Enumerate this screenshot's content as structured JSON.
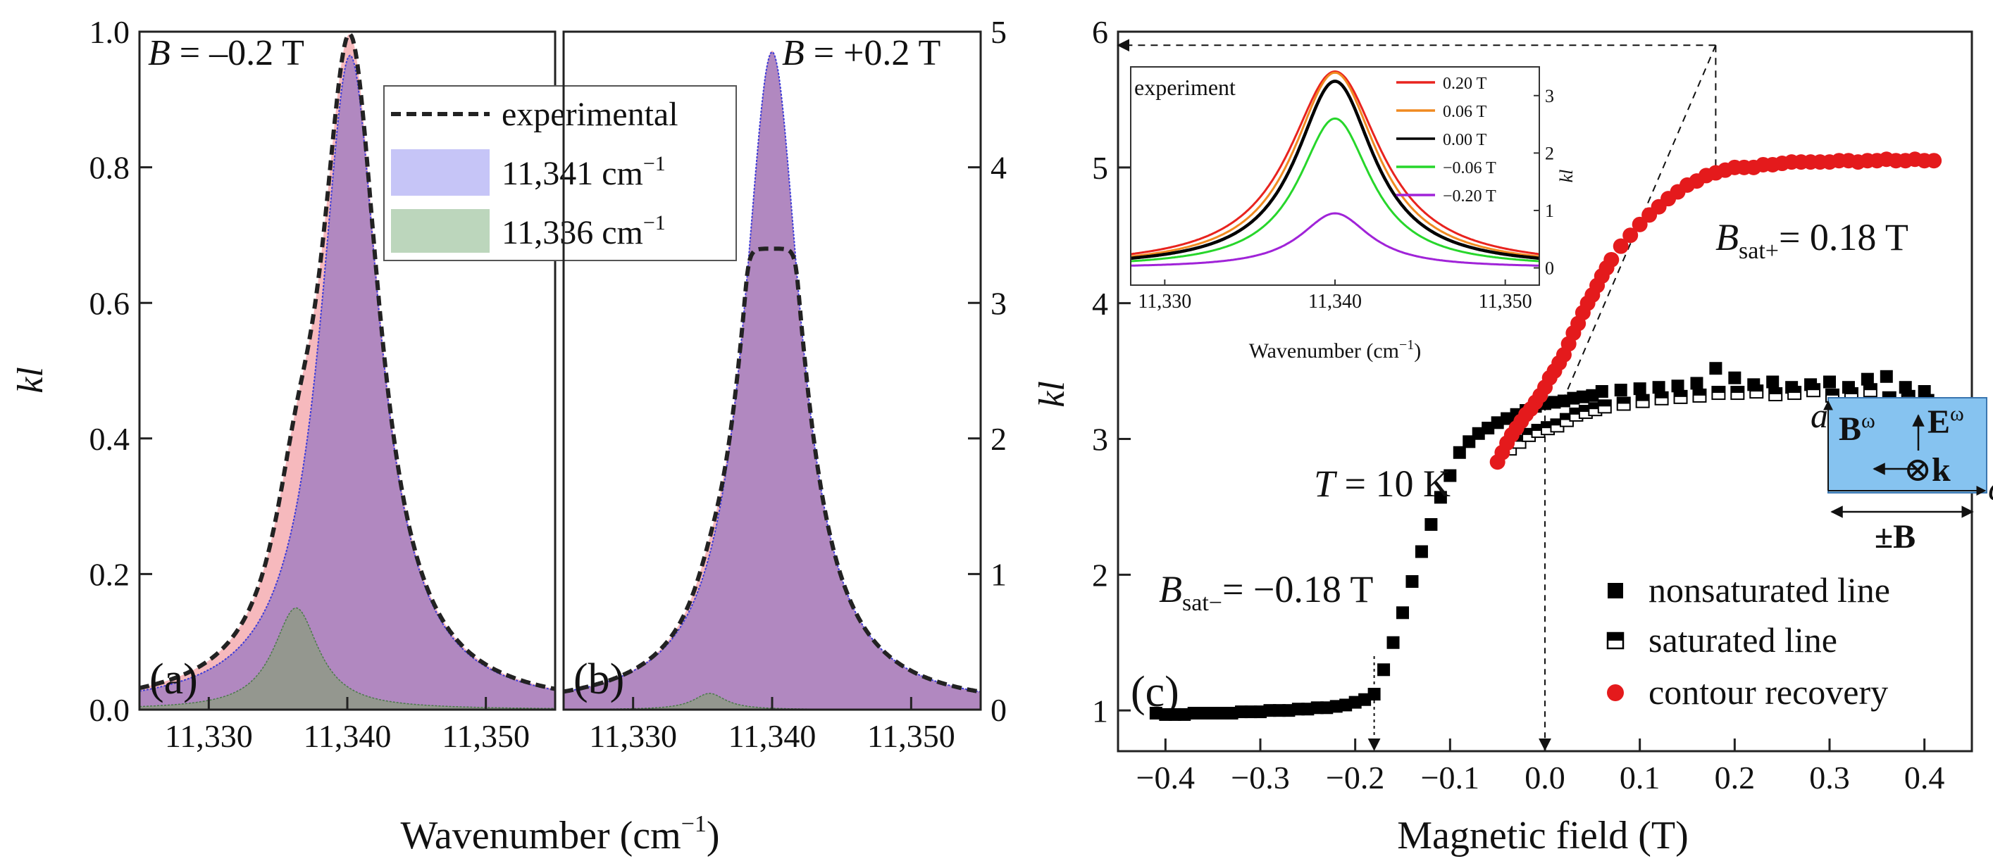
{
  "chart_data": [
    {
      "id": "a",
      "type": "area",
      "panel_label": "(a)",
      "annotation_B": "B",
      "annotation_rest": " = –0.2 T",
      "xlabel": "Wavenumber (cm",
      "xlabel_exp": "−1",
      "xlabel_close": ")",
      "ylabel": "kl",
      "xlim": [
        11325,
        11355
      ],
      "ylim": [
        0,
        1.0
      ],
      "xticks": [
        11330,
        11340,
        11350
      ],
      "xtick_labels": [
        "11,330",
        "11,340",
        "11,350"
      ],
      "yticks": [
        0.0,
        0.2,
        0.4,
        0.6,
        0.8,
        1.0
      ],
      "ytick_labels": [
        "0.0",
        "0.2",
        "0.4",
        "0.6",
        "0.8",
        "1.0"
      ],
      "series": [
        {
          "name": "experimental",
          "style": "dashed",
          "x0": 11340.2,
          "amplitude": 0.975,
          "width": 2.6
        },
        {
          "name": "11,341 cm−1",
          "fill": "blue",
          "x0": 11340.2,
          "amplitude": 0.965,
          "width": 2.6
        },
        {
          "name": "11,336 cm−1",
          "fill": "green",
          "x0": 11336.3,
          "amplitude": 0.15,
          "width": 2.0
        }
      ],
      "legend": [
        {
          "label": "experimental",
          "exp": ""
        },
        {
          "label": "11,341 cm",
          "exp": "−1"
        },
        {
          "label": "11,336 cm",
          "exp": "−1"
        }
      ]
    },
    {
      "id": "b",
      "type": "area",
      "panel_label": "(b)",
      "annotation_B": "B",
      "annotation_rest": " = +0.2 T",
      "ylim": [
        0,
        5
      ],
      "xlim": [
        11325,
        11355
      ],
      "xticks": [
        11330,
        11340,
        11350
      ],
      "xtick_labels": [
        "11,330",
        "11,340",
        "11,350"
      ],
      "yticks": [
        0,
        1,
        2,
        3,
        4,
        5
      ],
      "ytick_labels": [
        "0",
        "1",
        "2",
        "3",
        "4",
        "5"
      ],
      "series": [
        {
          "name": "11,341 cm−1",
          "fill": "blue",
          "x0": 11340.0,
          "amplitude": 4.85,
          "width": 2.5
        },
        {
          "name": "11,336 cm−1",
          "fill": "green",
          "x0": 11335.5,
          "amplitude": 0.12,
          "width": 1.4
        },
        {
          "name": "experimental",
          "style": "dashed",
          "x0": 11340.0,
          "amplitude": 3.4,
          "width": 2.5,
          "saturated_top": true
        }
      ]
    },
    {
      "id": "c",
      "type": "scatter",
      "panel_label": "(c)",
      "xlabel": "Magnetic field (T)",
      "ylabel": "kl",
      "xlim": [
        -0.45,
        0.45
      ],
      "ylim": [
        0.7,
        6.0
      ],
      "xticks": [
        -0.4,
        -0.3,
        -0.2,
        -0.1,
        0.0,
        0.1,
        0.2,
        0.3,
        0.4
      ],
      "xtick_labels": [
        "−0.4",
        "−0.3",
        "−0.2",
        "−0.1",
        "0.0",
        "0.1",
        "0.2",
        "0.3",
        "0.4"
      ],
      "yticks": [
        1,
        2,
        3,
        4,
        5,
        6
      ],
      "ytick_labels": [
        "1",
        "2",
        "3",
        "4",
        "5",
        "6"
      ],
      "temperature_T": "T",
      "temperature_rest": " = 10 K",
      "bsat_minus_B": "B",
      "bsat_minus_sub": "sat−",
      "bsat_minus_rest": "= −0.18 T",
      "bsat_plus_B": "B",
      "bsat_plus_sub": "sat+",
      "bsat_plus_rest": "= 0.18 T",
      "bsat_minus_value": -0.18,
      "bsat_plus_value": 0.18,
      "extrapolation_y": 5.9,
      "legend": [
        {
          "label": "nonsaturated line",
          "marker": "filled-square"
        },
        {
          "label": "saturated line",
          "marker": "half-square"
        },
        {
          "label": "contour recovery",
          "marker": "red-circle"
        }
      ],
      "series": [
        {
          "name": "nonsaturated line",
          "x": [
            -0.41,
            -0.4,
            -0.39,
            -0.38,
            -0.37,
            -0.36,
            -0.35,
            -0.34,
            -0.33,
            -0.32,
            -0.31,
            -0.3,
            -0.29,
            -0.28,
            -0.27,
            -0.26,
            -0.25,
            -0.24,
            -0.23,
            -0.22,
            -0.21,
            -0.2,
            -0.19,
            -0.18,
            -0.17,
            -0.16,
            -0.15,
            -0.14,
            -0.13,
            -0.12,
            -0.11,
            -0.1,
            -0.09,
            -0.08,
            -0.07,
            -0.06,
            -0.05,
            -0.04,
            -0.03,
            -0.02,
            -0.01,
            0.0,
            0.01,
            0.02,
            0.03,
            0.04,
            0.05,
            0.06,
            0.08,
            0.1,
            0.12,
            0.14,
            0.16,
            0.18,
            0.2,
            0.22,
            0.24,
            0.26,
            0.28,
            0.3,
            0.32,
            0.34,
            0.36,
            0.38,
            0.4
          ],
          "y": [
            0.98,
            0.97,
            0.97,
            0.97,
            0.98,
            0.98,
            0.98,
            0.98,
            0.98,
            0.99,
            0.99,
            0.99,
            1.0,
            1.0,
            1.0,
            1.01,
            1.01,
            1.02,
            1.02,
            1.03,
            1.04,
            1.06,
            1.08,
            1.12,
            1.3,
            1.5,
            1.72,
            1.95,
            2.17,
            2.37,
            2.57,
            2.73,
            2.9,
            2.98,
            3.04,
            3.08,
            3.12,
            3.15,
            3.18,
            3.21,
            3.24,
            3.26,
            3.27,
            3.28,
            3.3,
            3.31,
            3.32,
            3.35,
            3.36,
            3.37,
            3.38,
            3.39,
            3.41,
            3.52,
            3.45,
            3.4,
            3.42,
            3.38,
            3.4,
            3.42,
            3.38,
            3.44,
            3.46,
            3.38,
            3.35
          ]
        },
        {
          "name": "saturated line",
          "x": [
            -0.04,
            -0.03,
            -0.02,
            -0.01,
            0.0,
            0.01,
            0.02,
            0.03,
            0.04,
            0.05,
            0.06,
            0.08,
            0.1,
            0.12,
            0.14,
            0.16,
            0.18,
            0.2,
            0.22,
            0.24,
            0.26,
            0.28,
            0.3,
            0.32,
            0.34,
            0.36,
            0.38,
            0.4
          ],
          "y": [
            2.95,
            3.0,
            3.05,
            3.08,
            3.1,
            3.12,
            3.16,
            3.2,
            3.22,
            3.24,
            3.26,
            3.28,
            3.3,
            3.32,
            3.33,
            3.34,
            3.36,
            3.36,
            3.37,
            3.35,
            3.36,
            3.38,
            3.34,
            3.35,
            3.38,
            3.32,
            3.33,
            3.3
          ]
        },
        {
          "name": "contour recovery",
          "x": [
            -0.05,
            -0.045,
            -0.04,
            -0.035,
            -0.03,
            -0.025,
            -0.02,
            -0.015,
            -0.01,
            -0.005,
            0.0,
            0.005,
            0.01,
            0.015,
            0.02,
            0.025,
            0.03,
            0.035,
            0.04,
            0.045,
            0.05,
            0.055,
            0.06,
            0.065,
            0.07,
            0.08,
            0.09,
            0.1,
            0.11,
            0.12,
            0.13,
            0.14,
            0.15,
            0.16,
            0.17,
            0.18,
            0.19,
            0.2,
            0.21,
            0.22,
            0.23,
            0.24,
            0.25,
            0.26,
            0.27,
            0.28,
            0.29,
            0.3,
            0.31,
            0.32,
            0.33,
            0.34,
            0.35,
            0.36,
            0.37,
            0.38,
            0.39,
            0.4,
            0.41
          ],
          "y": [
            2.83,
            2.9,
            2.97,
            3.03,
            3.08,
            3.13,
            3.18,
            3.22,
            3.27,
            3.32,
            3.38,
            3.45,
            3.5,
            3.56,
            3.62,
            3.7,
            3.78,
            3.85,
            3.93,
            4.0,
            4.06,
            4.13,
            4.2,
            4.26,
            4.32,
            4.42,
            4.5,
            4.58,
            4.65,
            4.71,
            4.77,
            4.82,
            4.87,
            4.9,
            4.94,
            4.96,
            4.98,
            5.0,
            5.0,
            5.0,
            5.02,
            5.02,
            5.03,
            5.04,
            5.04,
            5.04,
            5.04,
            5.04,
            5.05,
            5.05,
            5.04,
            5.05,
            5.05,
            5.06,
            5.05,
            5.05,
            5.06,
            5.05,
            5.05
          ]
        }
      ],
      "geometry_inset": {
        "a_label": "a",
        "c_label": "c",
        "B_omega": "B",
        "E_omega": "E",
        "omega": "ω",
        "otimes_k": "⊗",
        "k_label": "k",
        "pm_B": "±B"
      },
      "inset_chart": {
        "type": "line",
        "title": "experiment",
        "xlabel": "Wavenumber (cm",
        "xlabel_exp": "−1",
        "xlabel_close": ")",
        "ylabel": "kl",
        "xlim": [
          11328,
          11352
        ],
        "ylim": [
          -0.3,
          3.5
        ],
        "xticks": [
          11330,
          11340,
          11350
        ],
        "xtick_labels": [
          "11,330",
          "11,340",
          "11,350"
        ],
        "yticks": [
          0,
          1,
          2,
          3
        ],
        "ytick_labels": [
          "0",
          "1",
          "2",
          "3"
        ],
        "series": [
          {
            "name": "0.20 T",
            "color": "#e8231e",
            "x0": 11340.0,
            "amplitude": 3.42,
            "width": 3.3
          },
          {
            "name": "0.06 T",
            "color": "#f08a21",
            "x0": 11340.0,
            "amplitude": 3.4,
            "width": 3.0
          },
          {
            "name": "0.00 T",
            "color": "#000000",
            "x0": 11340.0,
            "amplitude": 3.25,
            "width": 2.8
          },
          {
            "name": "−0.06 T",
            "color": "#27d62b",
            "x0": 11340.0,
            "amplitude": 2.6,
            "width": 2.6
          },
          {
            "name": "−0.20 T",
            "color": "#a023d8",
            "x0": 11340.0,
            "amplitude": 0.95,
            "width": 2.5
          }
        ]
      }
    }
  ],
  "colors": {
    "pink": "#f6b9bd",
    "purple_fill": "#b188c0",
    "blue_line": "#3d3dd8",
    "green_fill": "#9aa48c",
    "red_marker": "#e41a1c",
    "inset_blue": "#86c3f0"
  }
}
